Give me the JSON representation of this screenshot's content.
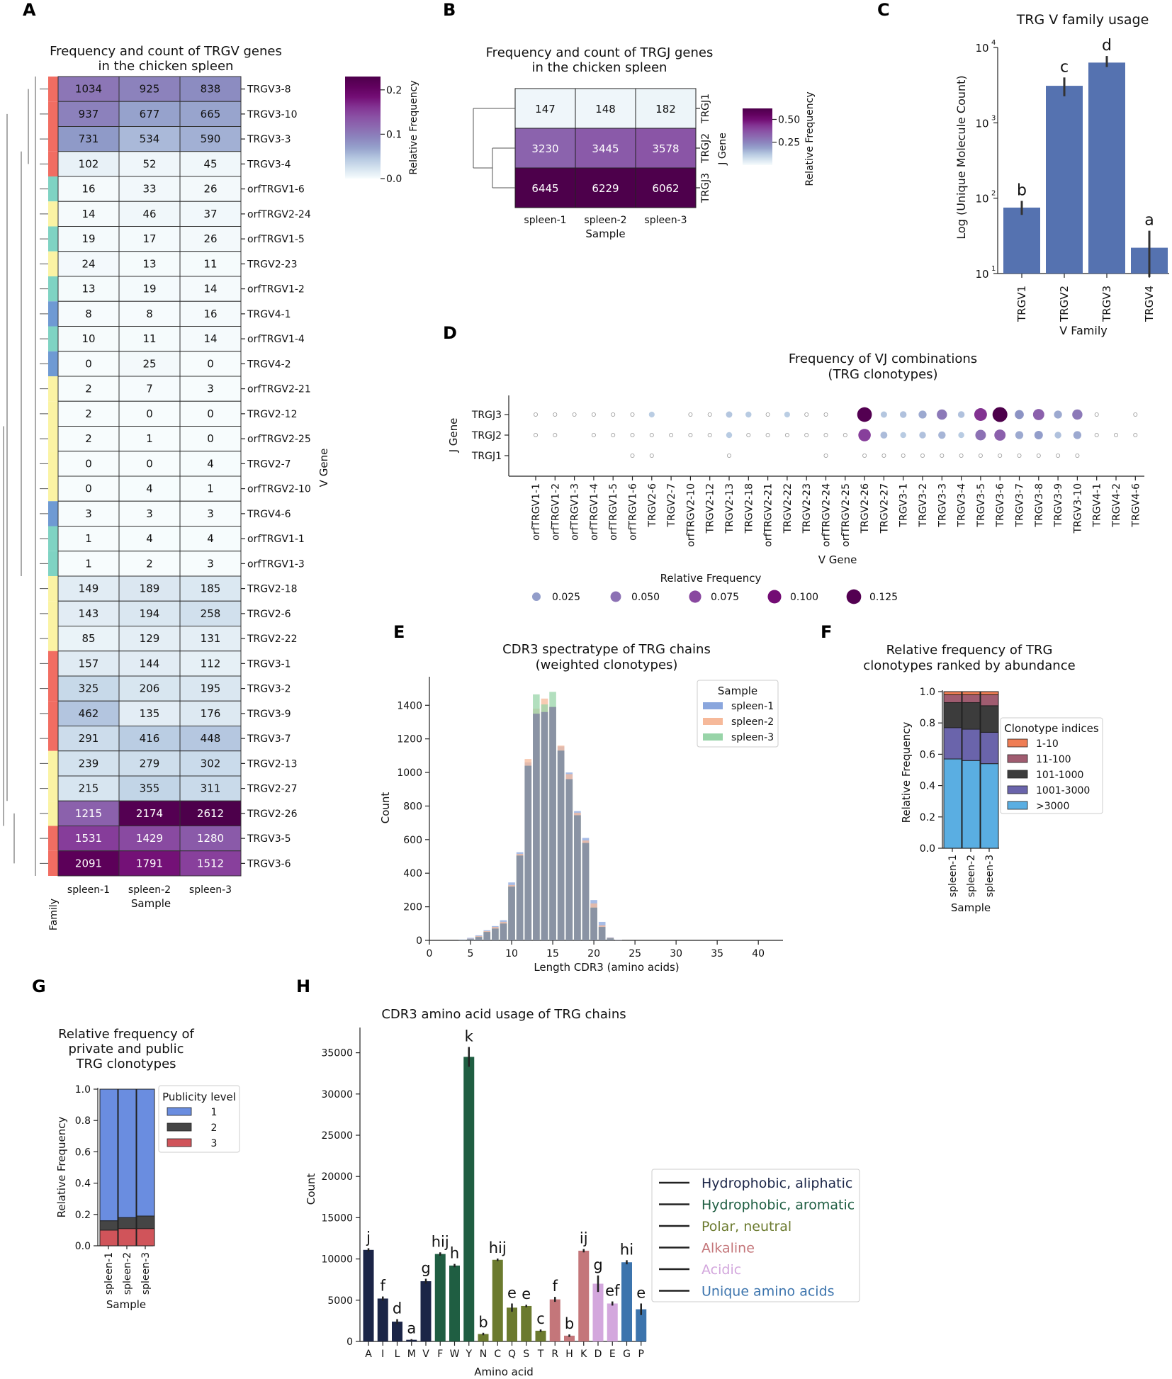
{
  "panels": {
    "A": "A",
    "B": "B",
    "C": "C",
    "D": "D",
    "E": "E",
    "F": "F",
    "G": "G",
    "H": "H"
  },
  "chart_data": [
    {
      "id": "A",
      "type": "heatmap",
      "title_lines": [
        "Frequency and count of TRGV genes",
        "in the chicken spleen"
      ],
      "columns": [
        "spleen-1",
        "spleen-2",
        "spleen-3"
      ],
      "xlabel": "Sample",
      "ylabel": "V Gene",
      "family_label": "Family",
      "colorbar_label": "Relative Frequency",
      "colorbar_ticks": [
        "0.0",
        "0.1",
        "0.2"
      ],
      "colorbar_max": 0.23,
      "family_colors": {
        "TRGV1": "#7fd3c3",
        "TRGV2": "#fbf3a4",
        "TRGV3": "#f16d62",
        "TRGV4": "#6f9ad3"
      },
      "rows": [
        {
          "gene": "TRGV3-8",
          "family": "TRGV3",
          "values": [
            1034,
            925,
            838
          ]
        },
        {
          "gene": "TRGV3-10",
          "family": "TRGV3",
          "values": [
            937,
            677,
            665
          ]
        },
        {
          "gene": "TRGV3-3",
          "family": "TRGV3",
          "values": [
            731,
            534,
            590
          ]
        },
        {
          "gene": "TRGV3-4",
          "family": "TRGV3",
          "values": [
            102,
            52,
            45
          ]
        },
        {
          "gene": "orfTRGV1-6",
          "family": "TRGV1",
          "values": [
            16,
            33,
            26
          ]
        },
        {
          "gene": "orfTRGV2-24",
          "family": "TRGV2",
          "values": [
            14,
            46,
            37
          ]
        },
        {
          "gene": "orfTRGV1-5",
          "family": "TRGV1",
          "values": [
            19,
            17,
            26
          ]
        },
        {
          "gene": "TRGV2-23",
          "family": "TRGV2",
          "values": [
            24,
            13,
            11
          ]
        },
        {
          "gene": "orfTRGV1-2",
          "family": "TRGV1",
          "values": [
            13,
            19,
            14
          ]
        },
        {
          "gene": "TRGV4-1",
          "family": "TRGV4",
          "values": [
            8,
            8,
            16
          ]
        },
        {
          "gene": "orfTRGV1-4",
          "family": "TRGV1",
          "values": [
            10,
            11,
            14
          ]
        },
        {
          "gene": "TRGV4-2",
          "family": "TRGV4",
          "values": [
            0,
            25,
            0
          ]
        },
        {
          "gene": "orfTRGV2-21",
          "family": "TRGV2",
          "values": [
            2,
            7,
            3
          ]
        },
        {
          "gene": "TRGV2-12",
          "family": "TRGV2",
          "values": [
            2,
            0,
            0
          ]
        },
        {
          "gene": "orfTRGV2-25",
          "family": "TRGV2",
          "values": [
            2,
            1,
            0
          ]
        },
        {
          "gene": "TRGV2-7",
          "family": "TRGV2",
          "values": [
            0,
            0,
            4
          ]
        },
        {
          "gene": "orfTRGV2-10",
          "family": "TRGV2",
          "values": [
            0,
            4,
            1
          ]
        },
        {
          "gene": "TRGV4-6",
          "family": "TRGV4",
          "values": [
            3,
            3,
            3
          ]
        },
        {
          "gene": "orfTRGV1-1",
          "family": "TRGV1",
          "values": [
            1,
            4,
            4
          ]
        },
        {
          "gene": "orfTRGV1-3",
          "family": "TRGV1",
          "values": [
            1,
            2,
            3
          ]
        },
        {
          "gene": "TRGV2-18",
          "family": "TRGV2",
          "values": [
            149,
            189,
            185
          ]
        },
        {
          "gene": "TRGV2-6",
          "family": "TRGV2",
          "values": [
            143,
            194,
            258
          ]
        },
        {
          "gene": "TRGV2-22",
          "family": "TRGV2",
          "values": [
            85,
            129,
            131
          ]
        },
        {
          "gene": "TRGV3-1",
          "family": "TRGV3",
          "values": [
            157,
            144,
            112
          ]
        },
        {
          "gene": "TRGV3-2",
          "family": "TRGV3",
          "values": [
            325,
            206,
            195
          ]
        },
        {
          "gene": "TRGV3-9",
          "family": "TRGV3",
          "values": [
            462,
            135,
            176
          ]
        },
        {
          "gene": "TRGV3-7",
          "family": "TRGV3",
          "values": [
            291,
            416,
            448
          ]
        },
        {
          "gene": "TRGV2-13",
          "family": "TRGV2",
          "values": [
            239,
            279,
            302
          ]
        },
        {
          "gene": "TRGV2-27",
          "family": "TRGV2",
          "values": [
            215,
            355,
            311
          ]
        },
        {
          "gene": "TRGV2-26",
          "family": "TRGV2",
          "values": [
            1215,
            2174,
            2612
          ]
        },
        {
          "gene": "TRGV3-5",
          "family": "TRGV3",
          "values": [
            1531,
            1429,
            1280
          ]
        },
        {
          "gene": "TRGV3-6",
          "family": "TRGV3",
          "values": [
            2091,
            1791,
            1512
          ]
        }
      ]
    },
    {
      "id": "B",
      "type": "heatmap",
      "title_lines": [
        "Frequency and count of TRGJ genes",
        "in the chicken spleen"
      ],
      "columns": [
        "spleen-1",
        "spleen-2",
        "spleen-3"
      ],
      "xlabel": "Sample",
      "ylabel": "J Gene",
      "colorbar_label": "Relative Frequency",
      "colorbar_ticks": [
        "0.25",
        "0.50"
      ],
      "colorbar_max": 0.62,
      "rows": [
        {
          "gene": "TRGJ1",
          "values": [
            147,
            148,
            182
          ]
        },
        {
          "gene": "TRGJ2",
          "values": [
            3230,
            3445,
            3578
          ]
        },
        {
          "gene": "TRGJ3",
          "values": [
            6445,
            6229,
            6062
          ]
        }
      ]
    },
    {
      "id": "C",
      "type": "bar",
      "title": "TRG V family usage",
      "categories": [
        "TRGV1",
        "TRGV2",
        "TRGV3",
        "TRGV4"
      ],
      "values": [
        75,
        3100,
        6300,
        22
      ],
      "err_low": [
        60,
        2250,
        5500,
        9
      ],
      "err_high": [
        92,
        4000,
        7700,
        37
      ],
      "letters": [
        "b",
        "c",
        "d",
        "a"
      ],
      "xlabel": "V Family",
      "ylabel": "Log (Unique Molecule Count)",
      "yscale": "log",
      "ylim": [
        10,
        10000
      ],
      "yticks": [
        "10",
        "10",
        "10",
        "10"
      ],
      "ytick_exponents": [
        "1",
        "2",
        "3",
        "4"
      ],
      "color": "#5572b0"
    },
    {
      "id": "D",
      "type": "scatter",
      "title_lines": [
        "Frequency of VJ combinations",
        "(TRG clonotypes)"
      ],
      "xlabel": "V Gene",
      "ylabel": "J Gene",
      "x_categories": [
        "orfTRGV1-1",
        "orfTRGV1-2",
        "orfTRGV1-3",
        "orfTRGV1-4",
        "orfTRGV1-5",
        "orfTRGV1-6",
        "TRGV2-6",
        "TRGV2-7",
        "orfTRGV2-10",
        "TRGV2-12",
        "TRGV2-13",
        "TRGV2-18",
        "orfTRGV2-21",
        "TRGV2-22",
        "TRGV2-23",
        "orfTRGV2-24",
        "orfTRGV2-25",
        "TRGV2-26",
        "TRGV2-27",
        "TRGV3-1",
        "TRGV3-2",
        "TRGV3-3",
        "TRGV3-4",
        "TRGV3-5",
        "TRGV3-6",
        "TRGV3-7",
        "TRGV3-8",
        "TRGV3-9",
        "TRGV3-10",
        "TRGV4-1",
        "TRGV4-2",
        "TRGV4-6"
      ],
      "y_categories": [
        "TRGJ3",
        "TRGJ2",
        "TRGJ1"
      ],
      "legend_title": "Relative Frequency",
      "legend_values": [
        0.025,
        0.05,
        0.075,
        0.1,
        0.125
      ],
      "legend_labels": [
        "0.025",
        "0.050",
        "0.075",
        "0.100",
        "0.125"
      ],
      "points": [
        {
          "j": "TRGJ3",
          "values": [
            0.001,
            0.001,
            0.001,
            0.001,
            0.001,
            0.002,
            0.005,
            0,
            0.001,
            0.001,
            0.008,
            0.006,
            0.001,
            0.005,
            0.002,
            0.003,
            0,
            0.125,
            0.008,
            0.01,
            0.02,
            0.045,
            0.01,
            0.085,
            0.13,
            0.03,
            0.06,
            0.02,
            0.045,
            0.002,
            0,
            0.002
          ]
        },
        {
          "j": "TRGJ2",
          "values": [
            0.001,
            0.001,
            0,
            0.001,
            0.001,
            0.002,
            0.003,
            0.001,
            0.001,
            0.001,
            0.006,
            0.003,
            0.001,
            0.004,
            0.002,
            0.002,
            0.001,
            0.08,
            0.012,
            0.006,
            0.01,
            0.015,
            0.006,
            0.05,
            0.06,
            0.02,
            0.025,
            0.01,
            0.02,
            0.002,
            0.001,
            0.001
          ]
        },
        {
          "j": "TRGJ1",
          "values": [
            0,
            0,
            0,
            0,
            0,
            0.001,
            0.001,
            0,
            0,
            0,
            0.001,
            0,
            0,
            0,
            0,
            0.001,
            0,
            0.001,
            0.001,
            0.001,
            0.001,
            0.001,
            0.001,
            0.001,
            0.002,
            0.001,
            0.001,
            0.001,
            0.001,
            0,
            0,
            0
          ]
        }
      ]
    },
    {
      "id": "E",
      "type": "bar",
      "title_lines": [
        "CDR3 spectratype of TRG chains",
        "(weighted clonotypes)"
      ],
      "xlabel": "Length CDR3 (amino acids)",
      "ylabel": "Count",
      "xlim": [
        0,
        43
      ],
      "ylim": [
        0,
        1570
      ],
      "xticks": [
        0,
        5,
        10,
        15,
        20,
        25,
        30,
        35,
        40
      ],
      "yticks": [
        0,
        200,
        400,
        600,
        800,
        1000,
        1200,
        1400
      ],
      "x": [
        4,
        5,
        6,
        7,
        8,
        9,
        10,
        11,
        12,
        13,
        14,
        15,
        16,
        17,
        18,
        19,
        20,
        21,
        22,
        23
      ],
      "legend_title": "Sample",
      "series": [
        {
          "name": "spleen-1",
          "color": "#8aa6dd",
          "values": [
            5,
            15,
            30,
            60,
            85,
            120,
            345,
            525,
            1060,
            1350,
            1360,
            1390,
            1155,
            1000,
            770,
            610,
            240,
            110,
            18,
            4
          ]
        },
        {
          "name": "spleen-2",
          "color": "#f6b99a",
          "values": [
            4,
            10,
            25,
            55,
            80,
            110,
            330,
            515,
            1080,
            1380,
            1440,
            1390,
            1160,
            990,
            760,
            595,
            220,
            90,
            15,
            3
          ]
        },
        {
          "name": "spleen-3",
          "color": "#98d4a8",
          "values": [
            3,
            8,
            20,
            50,
            70,
            100,
            320,
            505,
            1040,
            1465,
            1405,
            1480,
            1130,
            960,
            745,
            580,
            195,
            80,
            12,
            2
          ]
        }
      ]
    },
    {
      "id": "F",
      "type": "bar",
      "title_lines": [
        "Relative frequency of TRG",
        "clonotypes ranked by abundance"
      ],
      "categories": [
        "spleen-1",
        "spleen-2",
        "spleen-3"
      ],
      "xlabel": "Sample",
      "ylabel": "Relative Frequency",
      "ylim": [
        0,
        1.0
      ],
      "yticks": [
        "0.0",
        "0.2",
        "0.4",
        "0.6",
        "0.8",
        "1.0"
      ],
      "legend_title": "Clonotype indices",
      "series": [
        {
          "name": ">3000",
          "color": "#5aaee2",
          "values": [
            0.57,
            0.56,
            0.54
          ]
        },
        {
          "name": "1001-3000",
          "color": "#6a64ab",
          "values": [
            0.2,
            0.2,
            0.2
          ]
        },
        {
          "name": "101-1000",
          "color": "#3c3c3c",
          "values": [
            0.16,
            0.17,
            0.17
          ]
        },
        {
          "name": "11-100",
          "color": "#a05c70",
          "values": [
            0.05,
            0.05,
            0.07
          ]
        },
        {
          "name": "1-10",
          "color": "#ef7d54",
          "values": [
            0.02,
            0.02,
            0.02
          ]
        }
      ],
      "legend_order": [
        "1-10",
        "11-100",
        "101-1000",
        "1001-3000",
        ">3000"
      ]
    },
    {
      "id": "G",
      "type": "bar",
      "title_lines": [
        "Relative frequency of",
        "private and public",
        "TRG clonotypes"
      ],
      "categories": [
        "spleen-1",
        "spleen-2",
        "spleen-3"
      ],
      "xlabel": "Sample",
      "ylabel": "Relative Frequency",
      "ylim": [
        0,
        1.0
      ],
      "yticks": [
        "0.0",
        "0.2",
        "0.4",
        "0.6",
        "0.8",
        "1.0"
      ],
      "legend_title": "Publicity level",
      "series": [
        {
          "name": "3",
          "color": "#d0545a",
          "values": [
            0.1,
            0.11,
            0.11
          ]
        },
        {
          "name": "2",
          "color": "#454545",
          "values": [
            0.06,
            0.07,
            0.08
          ]
        },
        {
          "name": "1",
          "color": "#6a8de0",
          "values": [
            0.84,
            0.82,
            0.81
          ]
        }
      ],
      "legend_order": [
        "1",
        "2",
        "3"
      ]
    },
    {
      "id": "H",
      "type": "bar",
      "title": "CDR3 amino acid usage of TRG chains",
      "xlabel": "Amino acid",
      "ylabel": "Count",
      "ylim": [
        0,
        37500
      ],
      "yticks": [
        0,
        5000,
        10000,
        15000,
        20000,
        25000,
        30000,
        35000
      ],
      "categories": [
        "A",
        "I",
        "L",
        "M",
        "V",
        "F",
        "W",
        "Y",
        "N",
        "C",
        "Q",
        "S",
        "T",
        "R",
        "H",
        "K",
        "D",
        "E",
        "G",
        "P"
      ],
      "values": [
        11100,
        5200,
        2400,
        200,
        7300,
        10600,
        9200,
        34500,
        900,
        9900,
        4100,
        4300,
        1300,
        5100,
        700,
        11000,
        7000,
        4600,
        9600,
        3900
      ],
      "errors": [
        200,
        250,
        300,
        80,
        300,
        200,
        200,
        1200,
        150,
        150,
        500,
        150,
        150,
        300,
        150,
        200,
        1000,
        250,
        250,
        700
      ],
      "letters": [
        "j",
        "f",
        "d",
        "a",
        "g",
        "hij",
        "h",
        "k",
        "b",
        "hij",
        "e",
        "e",
        "c",
        "f",
        "b",
        "ij",
        "g",
        "ef",
        "hi",
        "e"
      ],
      "groups": [
        "aliphatic",
        "aliphatic",
        "aliphatic",
        "aliphatic",
        "aliphatic",
        "aromatic",
        "aromatic",
        "aromatic",
        "polar",
        "polar",
        "polar",
        "polar",
        "polar",
        "alkaline",
        "alkaline",
        "alkaline",
        "acidic",
        "acidic",
        "unique",
        "unique"
      ],
      "group_colors": {
        "aliphatic": "#1b2547",
        "aromatic": "#1f5e42",
        "polar": "#6b7a2e",
        "alkaline": "#c4767a",
        "acidic": "#d3a7dd",
        "unique": "#3c74ad"
      },
      "legend": [
        {
          "label": "Hydrophobic, aliphatic",
          "color": "#1b2547"
        },
        {
          "label": "Hydrophobic, aromatic",
          "color": "#1f5e42"
        },
        {
          "label": "Polar, neutral",
          "color": "#6b7a2e"
        },
        {
          "label": "Alkaline",
          "color": "#c4767a"
        },
        {
          "label": "Acidic",
          "color": "#d3a7dd"
        },
        {
          "label": "Unique amino acids",
          "color": "#3c74ad"
        }
      ]
    }
  ]
}
